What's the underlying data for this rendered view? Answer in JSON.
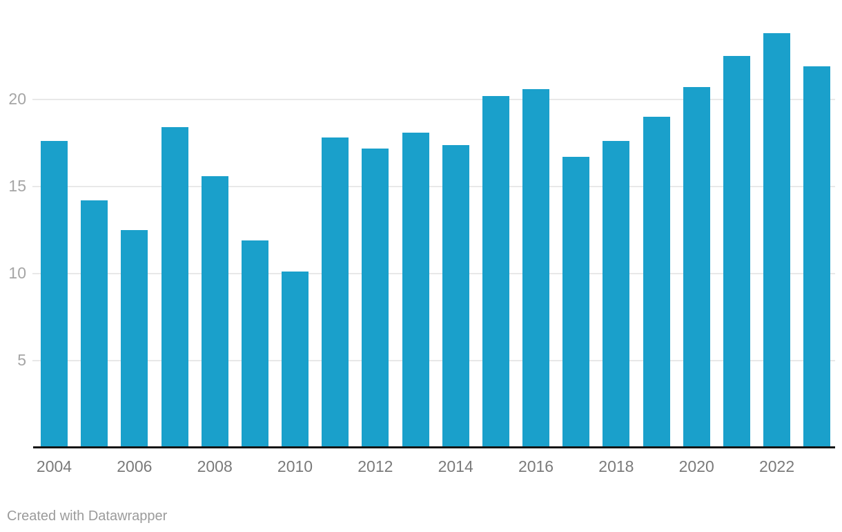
{
  "chart_data": {
    "type": "bar",
    "title": "",
    "xlabel": "",
    "ylabel": "",
    "categories": [
      "2004",
      "2005",
      "2006",
      "2007",
      "2008",
      "2009",
      "2010",
      "2011",
      "2012",
      "2013",
      "2014",
      "2015",
      "2016",
      "2017",
      "2018",
      "2019",
      "2020",
      "2021",
      "2022",
      "2023"
    ],
    "values": [
      17.6,
      14.2,
      12.5,
      18.4,
      15.6,
      11.9,
      10.1,
      17.8,
      17.2,
      18.1,
      17.4,
      20.2,
      20.6,
      16.7,
      17.6,
      19.0,
      20.7,
      22.5,
      23.8,
      21.9
    ],
    "x_tick_labels": [
      "2004",
      "2006",
      "2008",
      "2010",
      "2012",
      "2014",
      "2016",
      "2018",
      "2020",
      "2022"
    ],
    "x_tick_every": 2,
    "y_ticks": [
      5,
      10,
      15,
      20
    ],
    "ylim": [
      0,
      24.5
    ],
    "grid": "horizontal-only",
    "legend": "none",
    "bar_color": "#1aa0cb"
  },
  "colors": {
    "bar": "#1aa0cb",
    "gridline": "#e8e8e8",
    "axis_line": "#141414",
    "y_tick_text": "#a5a5a5",
    "x_tick_text": "#7a7a7a",
    "footer_text": "#9b9b9b",
    "background": "#ffffff"
  },
  "footer": {
    "attribution": "Created with Datawrapper"
  }
}
